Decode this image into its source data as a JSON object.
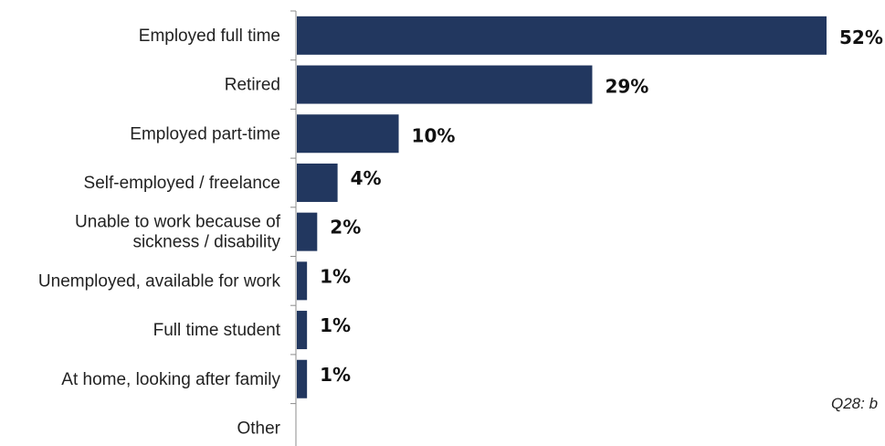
{
  "chart_data": {
    "type": "bar",
    "orientation": "horizontal",
    "categories": [
      [
        "Employed full time"
      ],
      [
        "Retired"
      ],
      [
        "Employed part-time"
      ],
      [
        "Self-employed / freelance"
      ],
      [
        "Unable to work because of",
        "sickness / disability"
      ],
      [
        "Unemployed, available for work"
      ],
      [
        "Full time student"
      ],
      [
        "At home, looking after family"
      ],
      [
        "Other"
      ]
    ],
    "values": [
      52,
      29,
      10,
      4,
      2,
      1,
      1,
      1,
      null
    ],
    "value_labels": [
      "52%",
      "29%",
      "10%",
      "4%",
      "2%",
      "1%",
      "1%",
      "1%",
      ""
    ],
    "xlim": [
      0,
      52
    ],
    "grid": false,
    "bar_color": "#22375F",
    "note": "Q28: b"
  }
}
